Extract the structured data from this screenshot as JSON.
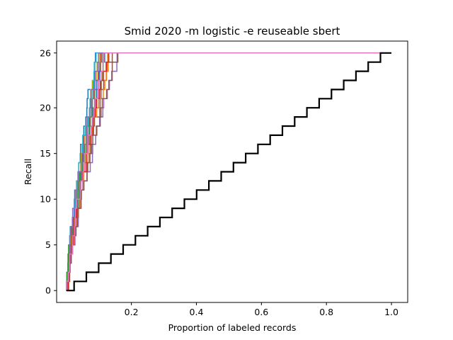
{
  "chart_data": {
    "type": "line",
    "title": "Smid 2020 -m logistic -e reuseable sbert",
    "xlabel": "Proportion of labeled records",
    "ylabel": "Recall",
    "xlim": [
      -0.03,
      1.05
    ],
    "ylim": [
      -1.3,
      27.3
    ],
    "x_ticks": [
      {
        "value": 0.2,
        "label": "0.2"
      },
      {
        "value": 0.4,
        "label": "0.4"
      },
      {
        "value": 0.6,
        "label": "0.6"
      },
      {
        "value": 0.8,
        "label": "0.8"
      },
      {
        "value": 1.0,
        "label": "1.0"
      }
    ],
    "y_ticks": [
      {
        "value": 0,
        "label": "0"
      },
      {
        "value": 5,
        "label": "5"
      },
      {
        "value": 10,
        "label": "10"
      },
      {
        "value": 15,
        "label": "15"
      },
      {
        "value": 20,
        "label": "20"
      },
      {
        "value": 26,
        "label": "26"
      }
    ],
    "grid": false,
    "legend": "none",
    "series": [
      {
        "color": "#1f77b4",
        "end_x": 0.09
      },
      {
        "color": "#ff7f0e",
        "end_x": 0.125
      },
      {
        "color": "#2ca02c",
        "end_x": 0.105
      },
      {
        "color": "#d62728",
        "end_x": 0.105
      },
      {
        "color": "#9467bd",
        "end_x": 0.16
      },
      {
        "color": "#8c564b",
        "end_x": 0.14
      },
      {
        "color": "#e377c2",
        "end_x": 0.12
      },
      {
        "color": "#7f7f7f",
        "end_x": 0.11
      },
      {
        "color": "#bcbd22",
        "end_x": 0.1
      },
      {
        "color": "#17becf",
        "end_x": 0.095
      },
      {
        "color": "#1f77b4",
        "end_x": 0.115
      },
      {
        "color": "#ff7f0e",
        "end_x": 0.135
      },
      {
        "color": "#2ca02c",
        "end_x": 0.12
      },
      {
        "color": "#d62728",
        "end_x": 0.13
      },
      {
        "color": "#9467bd",
        "end_x": 0.1
      },
      {
        "color": "#8c564b",
        "end_x": 0.155
      },
      {
        "color": "#e377c2",
        "end_x": 0.12
      }
    ],
    "random_baseline": {
      "color": "#000000",
      "total_relevant": 26
    }
  }
}
